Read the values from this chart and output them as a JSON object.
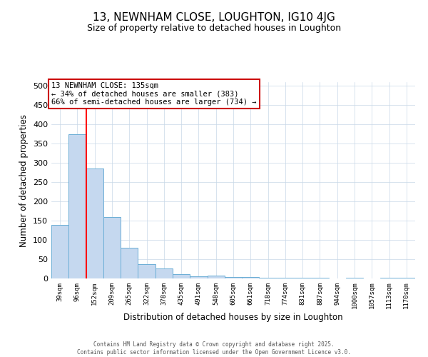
{
  "title": "13, NEWNHAM CLOSE, LOUGHTON, IG10 4JG",
  "subtitle": "Size of property relative to detached houses in Loughton",
  "xlabel": "Distribution of detached houses by size in Loughton",
  "ylabel": "Number of detached properties",
  "categories": [
    "39sqm",
    "96sqm",
    "152sqm",
    "209sqm",
    "265sqm",
    "322sqm",
    "378sqm",
    "435sqm",
    "491sqm",
    "548sqm",
    "605sqm",
    "661sqm",
    "718sqm",
    "774sqm",
    "831sqm",
    "887sqm",
    "944sqm",
    "1000sqm",
    "1057sqm",
    "1113sqm",
    "1170sqm"
  ],
  "values": [
    140,
    375,
    285,
    160,
    80,
    38,
    26,
    11,
    6,
    8,
    4,
    4,
    2,
    2,
    1,
    1,
    0,
    2,
    0,
    2,
    2
  ],
  "bar_color": "#c5d8ef",
  "bar_edge_color": "#6baed6",
  "red_line_x": 1.5,
  "annotation_title": "13 NEWNHAM CLOSE: 135sqm",
  "annotation_line2": "← 34% of detached houses are smaller (383)",
  "annotation_line3": "66% of semi-detached houses are larger (734) →",
  "annotation_box_color": "#ffffff",
  "annotation_box_edge": "#cc0000",
  "ylim": [
    0,
    510
  ],
  "yticks": [
    0,
    50,
    100,
    150,
    200,
    250,
    300,
    350,
    400,
    450,
    500
  ],
  "footer_line1": "Contains HM Land Registry data © Crown copyright and database right 2025.",
  "footer_line2": "Contains public sector information licensed under the Open Government Licence v3.0.",
  "background_color": "#ffffff",
  "grid_color": "#c8d8e8"
}
